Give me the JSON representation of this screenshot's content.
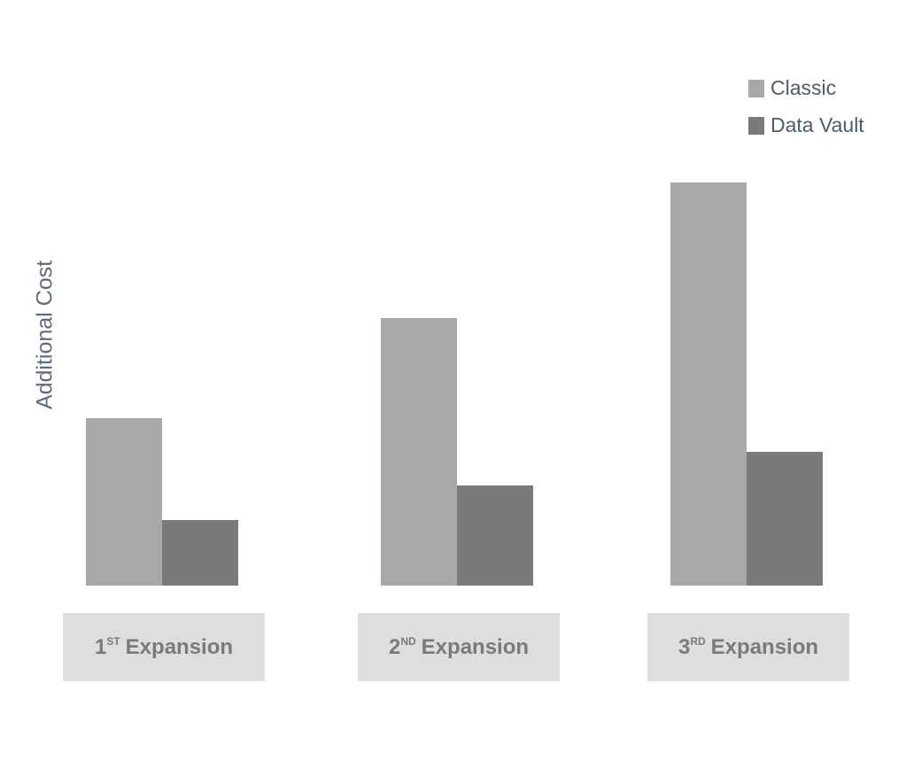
{
  "chart_data": {
    "type": "bar",
    "y_label": "Additional Cost",
    "categories": [
      {
        "ordinal": "1",
        "suffix": "ST",
        "label": "Expansion"
      },
      {
        "ordinal": "2",
        "suffix": "ND",
        "label": "Expansion"
      },
      {
        "ordinal": "3",
        "suffix": "RD",
        "label": "Expansion"
      }
    ],
    "series": [
      {
        "name": "Classic",
        "color": "#a8a8a8",
        "values": [
          189,
          302,
          455
        ]
      },
      {
        "name": "Data Vault",
        "color": "#7a7a78",
        "values": [
          74,
          113,
          151
        ]
      }
    ],
    "legend": "top-right"
  }
}
